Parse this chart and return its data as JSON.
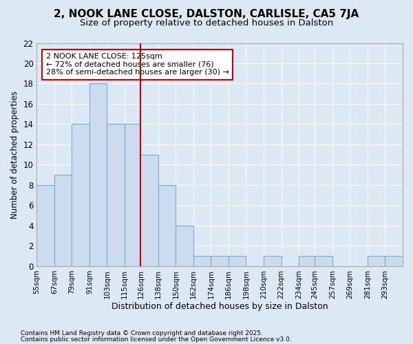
{
  "title1": "2, NOOK LANE CLOSE, DALSTON, CARLISLE, CA5 7JA",
  "title2": "Size of property relative to detached houses in Dalston",
  "xlabel": "Distribution of detached houses by size in Dalston",
  "ylabel": "Number of detached properties",
  "bar_labels": [
    "55sqm",
    "67sqm",
    "79sqm",
    "91sqm",
    "103sqm",
    "115sqm",
    "126sqm",
    "138sqm",
    "150sqm",
    "162sqm",
    "174sqm",
    "186sqm",
    "198sqm",
    "210sqm",
    "222sqm",
    "234sqm",
    "245sqm",
    "257sqm",
    "269sqm",
    "281sqm",
    "293sqm"
  ],
  "bar_values": [
    8,
    9,
    14,
    18,
    14,
    14,
    11,
    8,
    4,
    1,
    1,
    1,
    0,
    1,
    0,
    1,
    1,
    0,
    0,
    1,
    1
  ],
  "bar_color": "#ccdcee",
  "bar_edge_color": "#7aa8d0",
  "vline_x": 126,
  "vline_color": "#cc0000",
  "annotation_line1": "2 NOOK LANE CLOSE: 125sqm",
  "annotation_line2": "← 72% of detached houses are smaller (76)",
  "annotation_line3": "28% of semi-detached houses are larger (30) →",
  "annotation_box_color": "#ffffff",
  "annotation_box_edge": "#cc0000",
  "ylim": [
    0,
    22
  ],
  "yticks": [
    0,
    2,
    4,
    6,
    8,
    10,
    12,
    14,
    16,
    18,
    20,
    22
  ],
  "background_color": "#dde8f5",
  "grid_color": "#ffffff",
  "footer1": "Contains HM Land Registry data © Crown copyright and database right 2025.",
  "footer2": "Contains public sector information licensed under the Open Government Licence v3.0.",
  "bin_edges": [
    55,
    67,
    79,
    91,
    103,
    115,
    126,
    138,
    150,
    162,
    174,
    186,
    198,
    210,
    222,
    234,
    245,
    257,
    269,
    281,
    293,
    305
  ]
}
